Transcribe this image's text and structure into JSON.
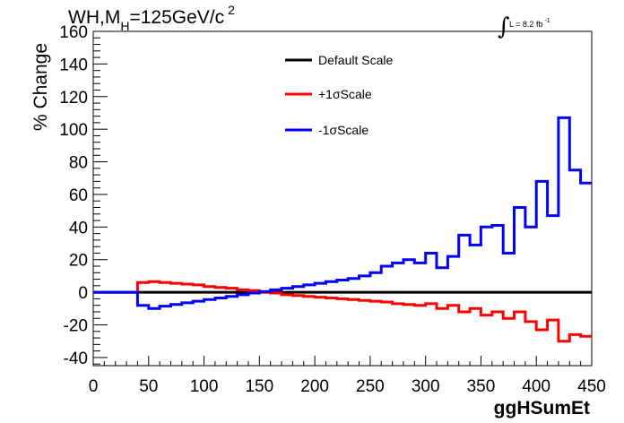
{
  "chart_data": {
    "type": "line",
    "drawstyle": "steps",
    "title": {
      "main": "WH,M",
      "sub": "H",
      "mid": "=125GeV/c",
      "sup": "2"
    },
    "lumi": {
      "symbol": "∫",
      "text": "L = 8.2 fb",
      "sup": "-1"
    },
    "xlabel": "ggHSumEt",
    "ylabel": "% Change",
    "xlim": [
      0,
      450
    ],
    "ylim": [
      -45,
      160
    ],
    "xticks": [
      0,
      50,
      100,
      150,
      200,
      250,
      300,
      350,
      400,
      450
    ],
    "yticks": [
      -40,
      -20,
      0,
      20,
      40,
      60,
      80,
      100,
      120,
      140,
      160
    ],
    "bin_edges": [
      0,
      10,
      20,
      30,
      40,
      50,
      60,
      70,
      80,
      90,
      100,
      110,
      120,
      130,
      140,
      150,
      160,
      170,
      180,
      190,
      200,
      210,
      220,
      230,
      240,
      250,
      260,
      270,
      280,
      290,
      300,
      310,
      320,
      330,
      340,
      350,
      360,
      370,
      380,
      390,
      400,
      410,
      420,
      430,
      440,
      450
    ],
    "legend_position": "top-center",
    "series": [
      {
        "name": "Default Scale",
        "color": "#000000",
        "values": [
          0,
          0,
          0,
          0,
          0,
          0,
          0,
          0,
          0,
          0,
          0,
          0,
          0,
          0,
          0,
          0,
          0,
          0,
          0,
          0,
          0,
          0,
          0,
          0,
          0,
          0,
          0,
          0,
          0,
          0,
          0,
          0,
          0,
          0,
          0,
          0,
          0,
          0,
          0,
          0,
          0,
          0,
          0,
          0,
          0
        ]
      },
      {
        "name": "+1σScale",
        "color": "#ff0000",
        "values": [
          0,
          0,
          0,
          0,
          6,
          6.5,
          6,
          5.5,
          5,
          4.5,
          3.5,
          3,
          2.5,
          1.5,
          1,
          0,
          -0.5,
          -1.5,
          -2,
          -2.5,
          -3,
          -3.5,
          -4,
          -4.5,
          -5,
          -5.5,
          -6,
          -7,
          -7.5,
          -8,
          -7,
          -10,
          -8,
          -12,
          -10,
          -14,
          -12,
          -16,
          -12,
          -18,
          -23,
          -17,
          -30,
          -26,
          -27
        ]
      },
      {
        "name": "-1σScale",
        "color": "#0000ff",
        "values": [
          0,
          0,
          0,
          0,
          -8,
          -10,
          -8.5,
          -7.5,
          -6.5,
          -5.5,
          -4.5,
          -3.5,
          -2.5,
          -1.5,
          -0.5,
          0.5,
          1.5,
          2.5,
          3.5,
          4.5,
          5.5,
          6.5,
          7.5,
          8.5,
          10,
          12,
          16,
          18,
          20,
          18,
          24,
          15,
          22,
          35,
          29,
          40,
          41,
          24,
          52,
          40,
          68,
          47,
          107,
          75,
          67
        ]
      }
    ]
  }
}
